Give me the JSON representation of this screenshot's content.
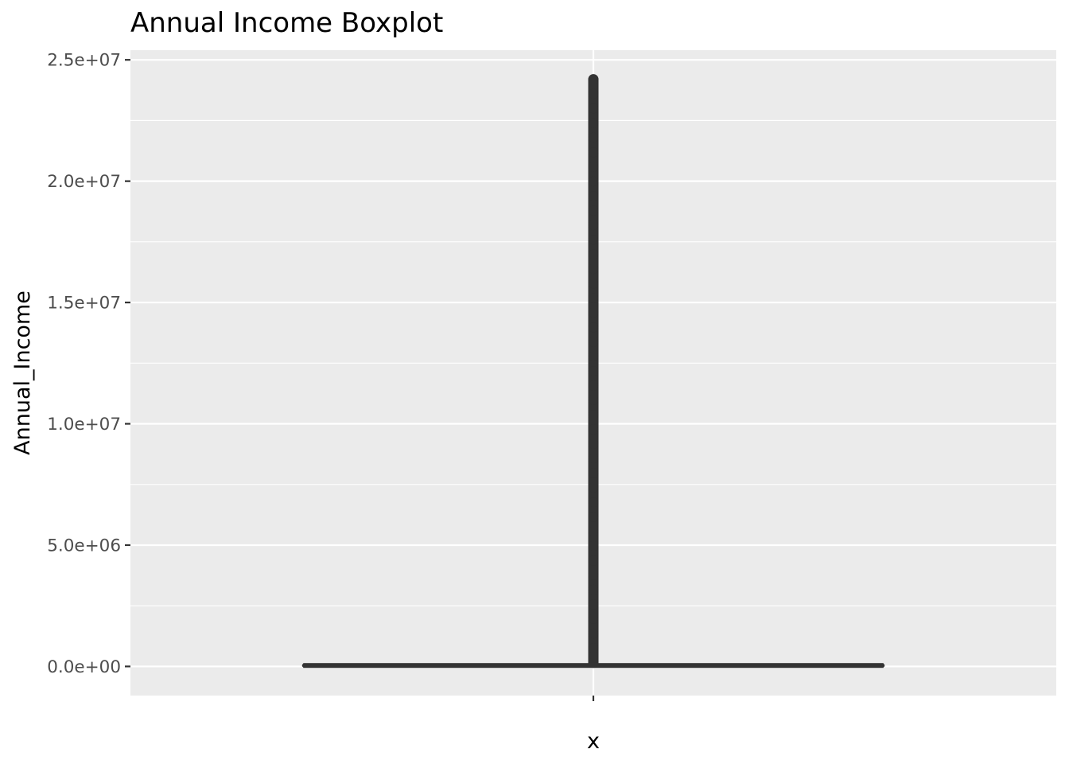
{
  "chart_data": {
    "type": "boxplot",
    "title": "Annual Income Boxplot",
    "xlabel": "x",
    "ylabel": "Annual_Income",
    "categories": [
      ""
    ],
    "ylim": [
      -1200000,
      25400000
    ],
    "y_ticks": [
      {
        "value": 0,
        "label": "0.0e+00"
      },
      {
        "value": 5000000,
        "label": "5.0e+06"
      },
      {
        "value": 10000000,
        "label": "1.0e+07"
      },
      {
        "value": 15000000,
        "label": "1.5e+07"
      },
      {
        "value": 20000000,
        "label": "2.0e+07"
      },
      {
        "value": 25000000,
        "label": "2.5e+07"
      }
    ],
    "box": {
      "min": 7000,
      "q1": 19500,
      "median": 37500,
      "q3": 72800,
      "max": 152300
    },
    "outliers_range": [
      152300,
      24200000
    ],
    "grid": true,
    "legend": "none",
    "colors": {
      "panel": "#ebebeb",
      "grid": "#ffffff",
      "mark": "#333333",
      "tick_text": "#4d4d4d",
      "tick": "#333333"
    }
  }
}
